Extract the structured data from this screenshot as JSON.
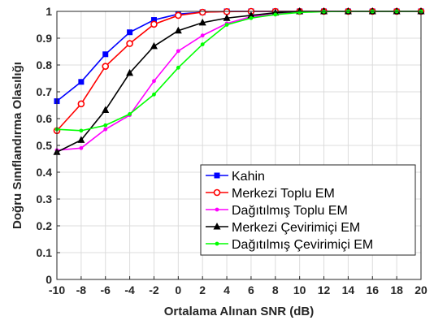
{
  "chart_data": {
    "type": "line",
    "xlabel": "Ortalama Alınan SNR (dB)",
    "ylabel": "Doğru Sınıflandırma Olasılığı",
    "xlim": [
      -10,
      20
    ],
    "ylim": [
      0,
      1
    ],
    "xticks": [
      -10,
      -8,
      -6,
      -4,
      -2,
      0,
      2,
      4,
      6,
      8,
      10,
      12,
      14,
      16,
      18,
      20
    ],
    "yticks": [
      0,
      0.1,
      0.2,
      0.3,
      0.4,
      0.5,
      0.6,
      0.7,
      0.8,
      0.9,
      1
    ],
    "xtick_labels": [
      "-10",
      "-8",
      "-6",
      "-4",
      "-2",
      "0",
      "2",
      "4",
      "6",
      "8",
      "10",
      "12",
      "14",
      "16",
      "18",
      "20"
    ],
    "ytick_labels": [
      "0",
      "0.1",
      "0.2",
      "0.3",
      "0.4",
      "0.5",
      "0.6",
      "0.7",
      "0.8",
      "0.9",
      "1"
    ],
    "grid": true,
    "legend_position": "bottom-right",
    "x": [
      -10,
      -8,
      -6,
      -4,
      -2,
      0,
      2,
      4,
      6,
      8,
      10,
      12,
      14,
      16,
      18,
      20
    ],
    "series": [
      {
        "name": "Kahin",
        "color": "#0000ff",
        "marker": "square",
        "values": [
          0.665,
          0.737,
          0.84,
          0.922,
          0.968,
          0.99,
          0.997,
          1.0,
          1.0,
          1.0,
          1.0,
          1.0,
          1.0,
          1.0,
          1.0,
          1.0
        ]
      },
      {
        "name": "Merkezi Toplu EM",
        "color": "#ff0000",
        "marker": "circle",
        "values": [
          0.555,
          0.655,
          0.795,
          0.88,
          0.952,
          0.985,
          0.997,
          0.999,
          1.0,
          1.0,
          1.0,
          1.0,
          1.0,
          1.0,
          1.0,
          1.0
        ]
      },
      {
        "name": "Dağıtılmış Toplu EM",
        "color": "#ff00ff",
        "marker": "dot",
        "values": [
          0.482,
          0.49,
          0.56,
          0.613,
          0.74,
          0.852,
          0.91,
          0.955,
          0.98,
          0.99,
          0.997,
          1.0,
          1.0,
          1.0,
          1.0,
          1.0
        ]
      },
      {
        "name": "Merkezi Çevirimiçi EM",
        "color": "#000000",
        "marker": "triangle",
        "values": [
          0.475,
          0.52,
          0.632,
          0.77,
          0.87,
          0.928,
          0.958,
          0.975,
          0.985,
          0.995,
          1.0,
          1.0,
          1.0,
          1.0,
          1.0,
          1.0
        ]
      },
      {
        "name": "Dağıtılmış Çevirimiçi EM",
        "color": "#00ff00",
        "marker": "dot",
        "values": [
          0.56,
          0.555,
          0.575,
          0.617,
          0.69,
          0.79,
          0.877,
          0.95,
          0.975,
          0.988,
          0.996,
          0.999,
          1.0,
          1.0,
          1.0,
          1.0
        ]
      }
    ]
  }
}
